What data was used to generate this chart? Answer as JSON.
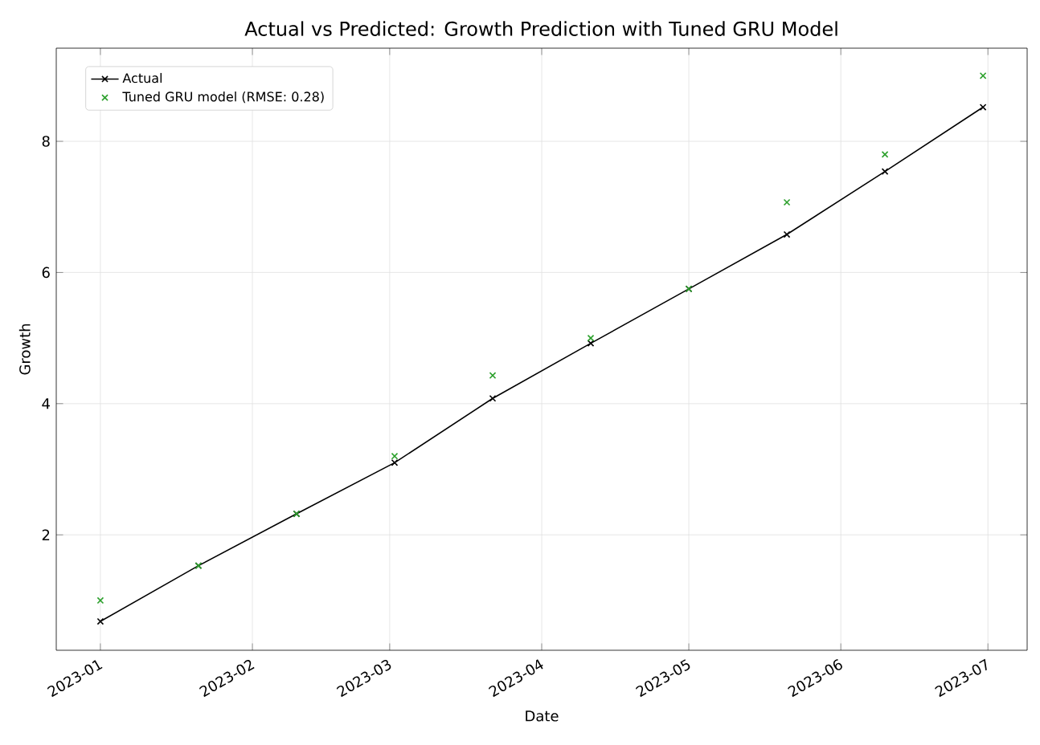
{
  "chart_data": {
    "type": "line",
    "title": "Actual vs Predicted: Growth Prediction with Tuned GRU Model",
    "xlabel": "Date",
    "ylabel": "Growth",
    "x": [
      "2023-01-01",
      "2023-01-21",
      "2023-02-10",
      "2023-03-02",
      "2023-03-22",
      "2023-04-11",
      "2023-05-01",
      "2023-05-21",
      "2023-06-10",
      "2023-06-30"
    ],
    "series": [
      {
        "name": "Actual",
        "color": "#000000",
        "marker": "cross",
        "values": [
          0.68,
          1.53,
          2.32,
          3.1,
          4.08,
          4.92,
          5.75,
          6.58,
          7.54,
          8.52
        ]
      },
      {
        "name": "Tuned GRU model (RMSE: 0.28)",
        "type": "scatter",
        "color": "#2ca02c",
        "marker": "cross",
        "values": [
          1.0,
          1.53,
          2.32,
          3.2,
          4.43,
          5.0,
          5.75,
          7.07,
          7.8,
          9.0
        ]
      }
    ],
    "xlim": [
      "2022-12-23",
      "2023-07-09"
    ],
    "ylim": [
      0.24,
      9.42
    ],
    "xticks": [
      "2023-01",
      "2023-02",
      "2023-03",
      "2023-04",
      "2023-05",
      "2023-06",
      "2023-07"
    ],
    "yticks": [
      2,
      4,
      6,
      8
    ],
    "grid": true,
    "legend": "top left"
  }
}
